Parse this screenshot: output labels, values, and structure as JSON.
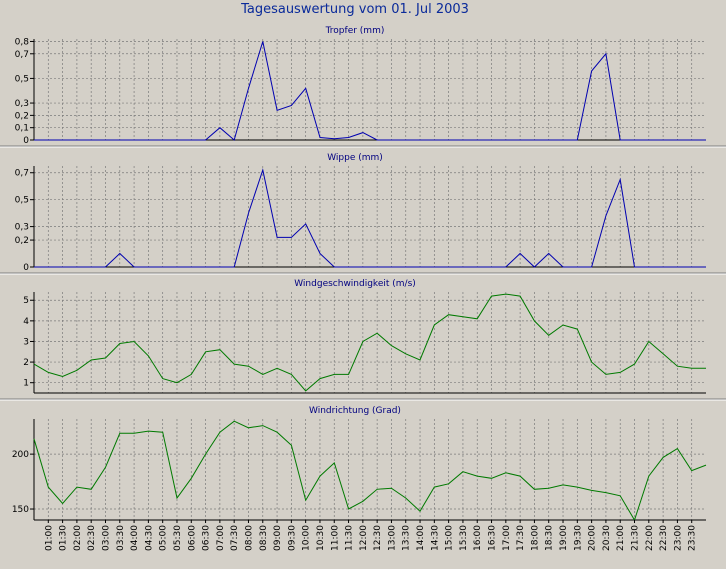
{
  "title": "Tagesauswertung vom 01. Jul 2003",
  "x_tick_labels": [
    "01:00",
    "01:30",
    "02:00",
    "02:30",
    "03:00",
    "03:30",
    "04:00",
    "04:30",
    "05:00",
    "05:30",
    "06:00",
    "06:30",
    "07:00",
    "07:30",
    "08:00",
    "08:30",
    "09:00",
    "09:30",
    "10:00",
    "10:30",
    "11:00",
    "11:30",
    "12:00",
    "12:30",
    "13:00",
    "13:30",
    "14:00",
    "14:30",
    "15:00",
    "15:30",
    "16:00",
    "16:30",
    "17:00",
    "17:30",
    "18:00",
    "18:30",
    "19:00",
    "19:30",
    "20:00",
    "20:30",
    "21:00",
    "21:30",
    "22:00",
    "22:30",
    "23:00",
    "23:30"
  ],
  "colors": {
    "background": "#d4d0c8",
    "title": "#0a2a9a",
    "subtitle": "#000080",
    "blue_series": "#0000b0",
    "green_series": "#007a00",
    "grid": "#7a7a7a"
  },
  "chart_data": [
    {
      "type": "line",
      "title": "Tropfer (mm)",
      "color": "#0000b0",
      "ylim": [
        0,
        0.82
      ],
      "yticks": [
        0,
        0.1,
        0.2,
        0.3,
        0.5,
        0.7,
        0.8
      ],
      "ytick_labels": [
        "0",
        "0,1",
        "0,2",
        "0,3",
        "0,5",
        "0,7",
        "0,8"
      ],
      "x": [
        0.5,
        1,
        1.5,
        2,
        2.5,
        3,
        3.5,
        4,
        4.5,
        5,
        5.5,
        6,
        6.5,
        7,
        7.5,
        8,
        8.5,
        9,
        9.5,
        10,
        10.5,
        11,
        11.5,
        12,
        12.5,
        13,
        13.5,
        14,
        14.5,
        15,
        15.5,
        16,
        16.5,
        17,
        17.5,
        18,
        18.5,
        19,
        19.5,
        20,
        20.5,
        21,
        21.5,
        22,
        22.5,
        23,
        23.5,
        24
      ],
      "values": [
        0,
        0,
        0,
        0,
        0,
        0,
        0,
        0,
        0,
        0,
        0,
        0,
        0,
        0.1,
        0,
        0.42,
        0.8,
        0.24,
        0.28,
        0.42,
        0.02,
        0.01,
        0.02,
        0.06,
        0,
        0,
        0,
        0,
        0,
        0,
        0,
        0,
        0,
        0,
        0,
        0,
        0,
        0,
        0,
        0.56,
        0.7,
        0,
        0,
        0,
        0,
        0,
        0,
        0
      ]
    },
    {
      "type": "line",
      "title": "Wippe (mm)",
      "color": "#0000b0",
      "ylim": [
        0,
        0.75
      ],
      "yticks": [
        0,
        0.2,
        0.3,
        0.5,
        0.7
      ],
      "ytick_labels": [
        "0",
        "0,2",
        "0,3",
        "0,5",
        "0,7"
      ],
      "x": [
        0.5,
        1,
        1.5,
        2,
        2.5,
        3,
        3.5,
        4,
        4.5,
        5,
        5.5,
        6,
        6.5,
        7,
        7.5,
        8,
        8.5,
        9,
        9.5,
        10,
        10.5,
        11,
        11.5,
        12,
        12.5,
        13,
        13.5,
        14,
        14.5,
        15,
        15.5,
        16,
        16.5,
        17,
        17.5,
        18,
        18.5,
        19,
        19.5,
        20,
        20.5,
        21,
        21.5,
        22,
        22.5,
        23,
        23.5,
        24
      ],
      "values": [
        0,
        0,
        0,
        0,
        0,
        0,
        0.1,
        0,
        0,
        0,
        0,
        0,
        0,
        0,
        0,
        0.4,
        0.72,
        0.22,
        0.22,
        0.32,
        0.1,
        0,
        0,
        0,
        0,
        0,
        0,
        0,
        0,
        0,
        0,
        0,
        0,
        0,
        0.1,
        0,
        0.1,
        0,
        0,
        0,
        0.38,
        0.65,
        0,
        0,
        0,
        0,
        0,
        0
      ]
    },
    {
      "type": "line",
      "title": "Windgeschwindigkeit (m/s)",
      "color": "#007a00",
      "ylim": [
        0.5,
        5.4
      ],
      "yticks": [
        1,
        2,
        3,
        4,
        5
      ],
      "ytick_labels": [
        "1",
        "2",
        "3",
        "4",
        "5"
      ],
      "x": [
        0.5,
        1,
        1.5,
        2,
        2.5,
        3,
        3.5,
        4,
        4.5,
        5,
        5.5,
        6,
        6.5,
        7,
        7.5,
        8,
        8.5,
        9,
        9.5,
        10,
        10.5,
        11,
        11.5,
        12,
        12.5,
        13,
        13.5,
        14,
        14.5,
        15,
        15.5,
        16,
        16.5,
        17,
        17.5,
        18,
        18.5,
        19,
        19.5,
        20,
        20.5,
        21,
        21.5,
        22,
        22.5,
        23,
        23.5,
        24
      ],
      "values": [
        1.9,
        1.5,
        1.3,
        1.6,
        2.1,
        2.2,
        2.9,
        3.0,
        2.3,
        1.2,
        1.0,
        1.4,
        2.5,
        2.6,
        1.9,
        1.8,
        1.4,
        1.7,
        1.4,
        0.6,
        1.2,
        1.4,
        1.4,
        3.0,
        3.4,
        2.8,
        2.4,
        2.1,
        3.8,
        4.3,
        4.2,
        4.1,
        5.2,
        5.3,
        5.2,
        4.0,
        3.3,
        3.8,
        3.6,
        2.0,
        1.4,
        1.5,
        1.9,
        3.0,
        2.4,
        1.8,
        1.7,
        1.7
      ]
    },
    {
      "type": "line",
      "title": "Windrichtung (Grad)",
      "color": "#007a00",
      "ylim": [
        140,
        232
      ],
      "yticks": [
        150,
        200
      ],
      "ytick_labels": [
        "150",
        "200"
      ],
      "x": [
        0.5,
        1,
        1.5,
        2,
        2.5,
        3,
        3.5,
        4,
        4.5,
        5,
        5.5,
        6,
        6.5,
        7,
        7.5,
        8,
        8.5,
        9,
        9.5,
        10,
        10.5,
        11,
        11.5,
        12,
        12.5,
        13,
        13.5,
        14,
        14.5,
        15,
        15.5,
        16,
        16.5,
        17,
        17.5,
        18,
        18.5,
        19,
        19.5,
        20,
        20.5,
        21,
        21.5,
        22,
        22.5,
        23,
        23.5,
        24
      ],
      "values": [
        214,
        170,
        155,
        170,
        168,
        188,
        219,
        219,
        221,
        220,
        160,
        178,
        200,
        220,
        230,
        224,
        226,
        220,
        208,
        158,
        180,
        192,
        150,
        157,
        168,
        169,
        160,
        148,
        170,
        173,
        184,
        180,
        178,
        183,
        180,
        168,
        169,
        172,
        170,
        167,
        165,
        162,
        140,
        180,
        197,
        205,
        185,
        190
      ]
    }
  ]
}
